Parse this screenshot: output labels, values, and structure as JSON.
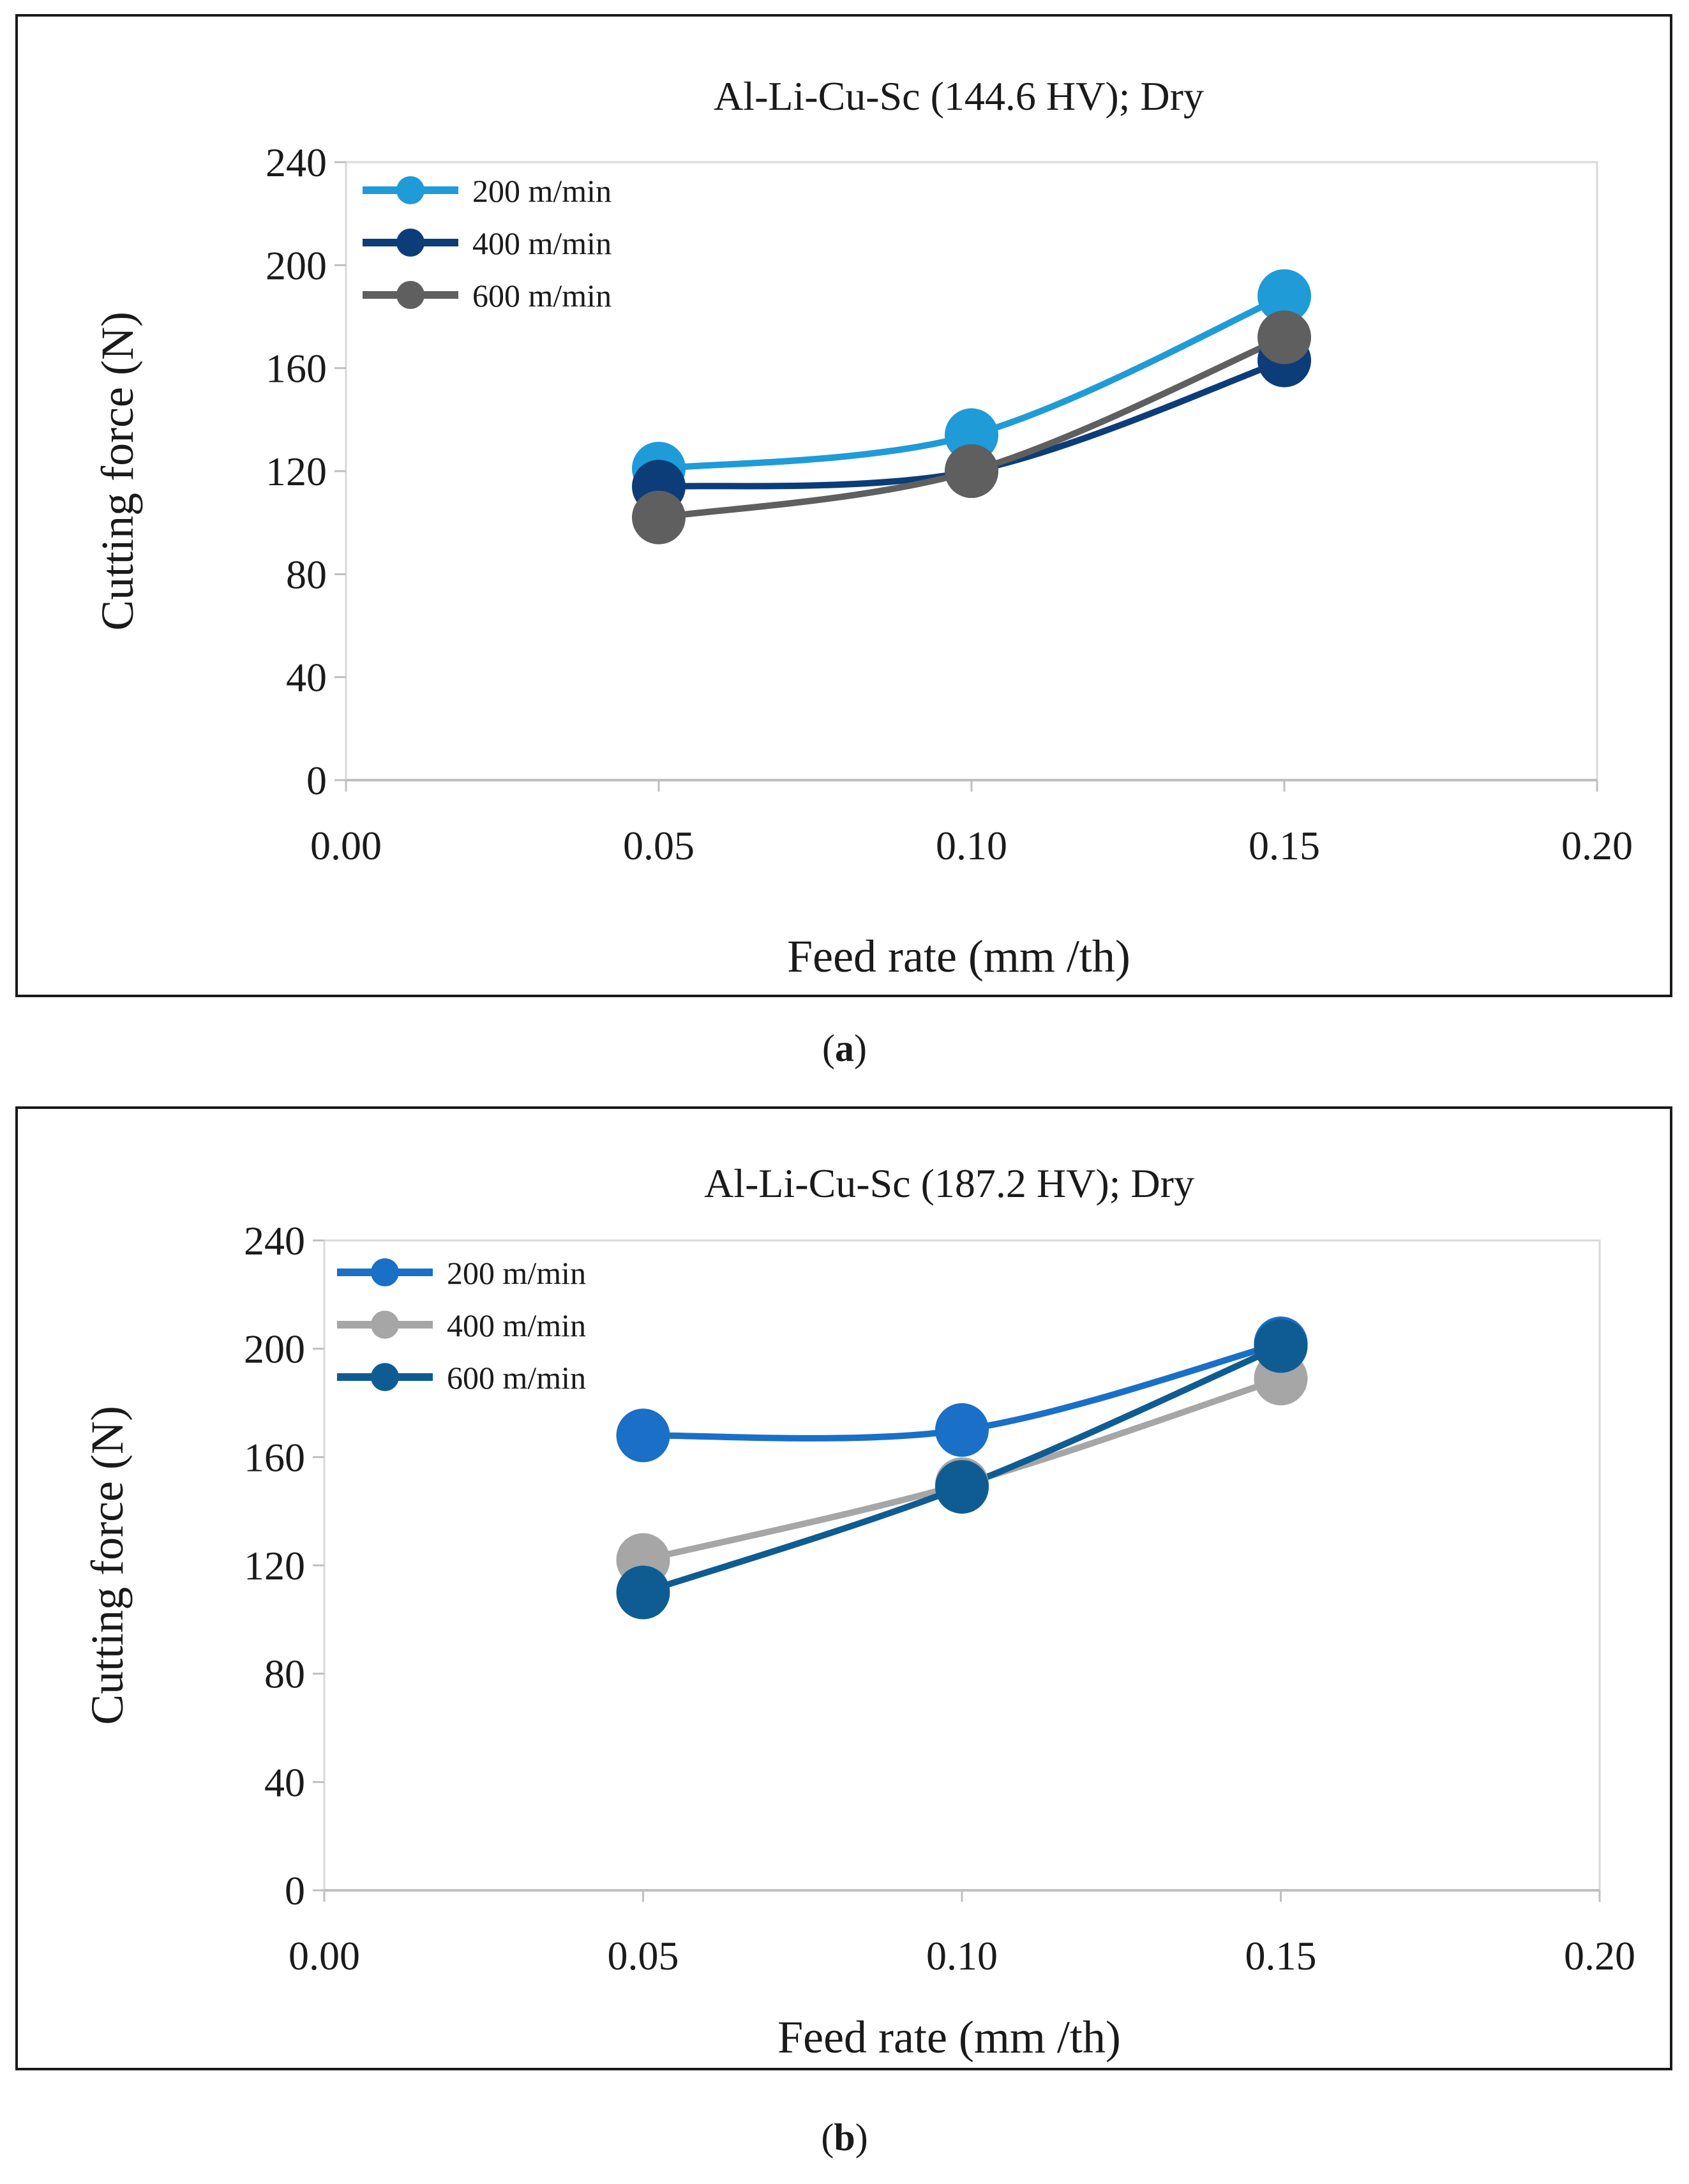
{
  "captions": [
    {
      "open": "(",
      "letter": "a",
      "close": ")"
    },
    {
      "open": "(",
      "letter": "b",
      "close": ")"
    }
  ],
  "chart_data": [
    {
      "type": "line",
      "title": "Al-Li-Cu-Sc (144.6 HV); Dry",
      "xlabel": "Feed rate (mm /th)",
      "ylabel": "Cutting force (N)",
      "xlim": [
        0,
        0.2
      ],
      "ylim": [
        0,
        240
      ],
      "xticks": [
        "0.00",
        "0.05",
        "0.10",
        "0.15",
        "0.20"
      ],
      "yticks": [
        "0",
        "40",
        "80",
        "120",
        "160",
        "200",
        "240"
      ],
      "grid": false,
      "legend": "top-left",
      "x": [
        0.05,
        0.1,
        0.15
      ],
      "series": [
        {
          "name": "200 m/min",
          "color": "#1f9bd7",
          "values": [
            121,
            134,
            188
          ]
        },
        {
          "name": "400 m/min",
          "color": "#0d3d78",
          "values": [
            114,
            120,
            163
          ]
        },
        {
          "name": "600 m/min",
          "color": "#5f5f5f",
          "values": [
            102,
            120,
            172
          ]
        }
      ]
    },
    {
      "type": "line",
      "title": "Al-Li-Cu-Sc (187.2 HV); Dry",
      "xlabel": "Feed rate (mm /th)",
      "ylabel": "Cutting force (N)",
      "xlim": [
        0,
        0.2
      ],
      "ylim": [
        0,
        240
      ],
      "xticks": [
        "0.00",
        "0.05",
        "0.10",
        "0.15",
        "0.20"
      ],
      "yticks": [
        "0",
        "40",
        "80",
        "120",
        "160",
        "200",
        "240"
      ],
      "grid": false,
      "legend": "top-left",
      "x": [
        0.05,
        0.1,
        0.15
      ],
      "series": [
        {
          "name": "200 m/min",
          "color": "#1a6fc7",
          "values": [
            168,
            170,
            202
          ]
        },
        {
          "name": "400 m/min",
          "color": "#a6a6a6",
          "values": [
            122,
            150,
            189
          ]
        },
        {
          "name": "600 m/min",
          "color": "#0f5c93",
          "values": [
            110,
            149,
            201
          ]
        }
      ]
    }
  ]
}
